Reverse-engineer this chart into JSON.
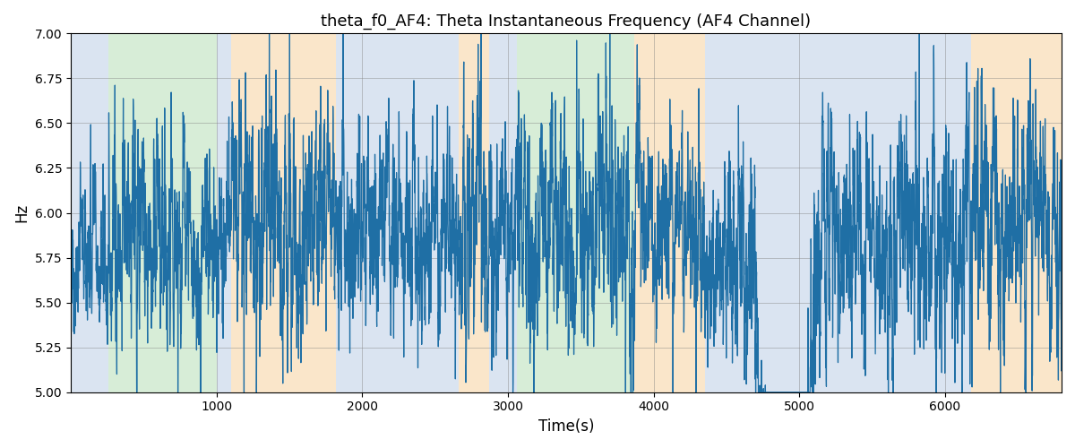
{
  "title": "theta_f0_AF4: Theta Instantaneous Frequency (AF4 Channel)",
  "xlabel": "Time(s)",
  "ylabel": "Hz",
  "ylim": [
    5.0,
    7.0
  ],
  "xlim": [
    0,
    6800
  ],
  "yticks": [
    5.0,
    5.25,
    5.5,
    5.75,
    6.0,
    6.25,
    6.5,
    6.75,
    7.0
  ],
  "xticks": [
    1000,
    2000,
    3000,
    4000,
    5000,
    6000
  ],
  "line_color": "#1f6fa5",
  "bg_color": "white",
  "figsize": [
    12.0,
    5.0
  ],
  "dpi": 100,
  "colored_bands": [
    {
      "xmin": 0,
      "xmax": 260,
      "color": "#adc4e0",
      "alpha": 0.45
    },
    {
      "xmin": 260,
      "xmax": 1000,
      "color": "#a8d8a8",
      "alpha": 0.45
    },
    {
      "xmin": 1000,
      "xmax": 1100,
      "color": "#adc4e0",
      "alpha": 0.45
    },
    {
      "xmin": 1100,
      "xmax": 1820,
      "color": "#f5c98a",
      "alpha": 0.45
    },
    {
      "xmin": 1820,
      "xmax": 2660,
      "color": "#adc4e0",
      "alpha": 0.45
    },
    {
      "xmin": 2660,
      "xmax": 2870,
      "color": "#f5c98a",
      "alpha": 0.45
    },
    {
      "xmin": 2870,
      "xmax": 3060,
      "color": "#adc4e0",
      "alpha": 0.45
    },
    {
      "xmin": 3060,
      "xmax": 3870,
      "color": "#a8d8a8",
      "alpha": 0.45
    },
    {
      "xmin": 3870,
      "xmax": 4350,
      "color": "#f5c98a",
      "alpha": 0.45
    },
    {
      "xmin": 4350,
      "xmax": 6180,
      "color": "#adc4e0",
      "alpha": 0.45
    },
    {
      "xmin": 6180,
      "xmax": 6800,
      "color": "#f5c98a",
      "alpha": 0.45
    }
  ],
  "n_points": 6800,
  "t_end": 6800,
  "line_width": 0.9,
  "segment_params": [
    {
      "start": 0,
      "end": 260,
      "mean": 5.78,
      "std": 0.13
    },
    {
      "start": 260,
      "end": 500,
      "mean": 5.9,
      "std": 0.2
    },
    {
      "start": 500,
      "end": 700,
      "mean": 5.85,
      "std": 0.2
    },
    {
      "start": 700,
      "end": 1000,
      "mean": 5.8,
      "std": 0.18
    },
    {
      "start": 1000,
      "end": 1100,
      "mean": 5.78,
      "std": 0.15
    },
    {
      "start": 1100,
      "end": 1820,
      "mean": 5.98,
      "std": 0.22
    },
    {
      "start": 1820,
      "end": 2660,
      "mean": 5.88,
      "std": 0.18
    },
    {
      "start": 2660,
      "end": 2870,
      "mean": 5.98,
      "std": 0.22
    },
    {
      "start": 2870,
      "end": 3060,
      "mean": 5.85,
      "std": 0.18
    },
    {
      "start": 3060,
      "end": 3870,
      "mean": 5.92,
      "std": 0.22
    },
    {
      "start": 3870,
      "end": 4350,
      "mean": 5.95,
      "std": 0.18
    },
    {
      "start": 4350,
      "end": 4700,
      "mean": 5.7,
      "std": 0.2
    },
    {
      "start": 4700,
      "end": 5100,
      "mean": 5.3,
      "std": 0.22
    },
    {
      "start": 5100,
      "end": 6180,
      "mean": 5.88,
      "std": 0.2
    },
    {
      "start": 6180,
      "end": 6800,
      "mean": 5.95,
      "std": 0.22
    }
  ],
  "spike_params": {
    "seed_main": 77,
    "seed_spike": 123,
    "ar_coef": 0.75,
    "n_spikes": 55,
    "spike_magnitude_min": 0.35,
    "spike_magnitude_max": 1.0
  }
}
